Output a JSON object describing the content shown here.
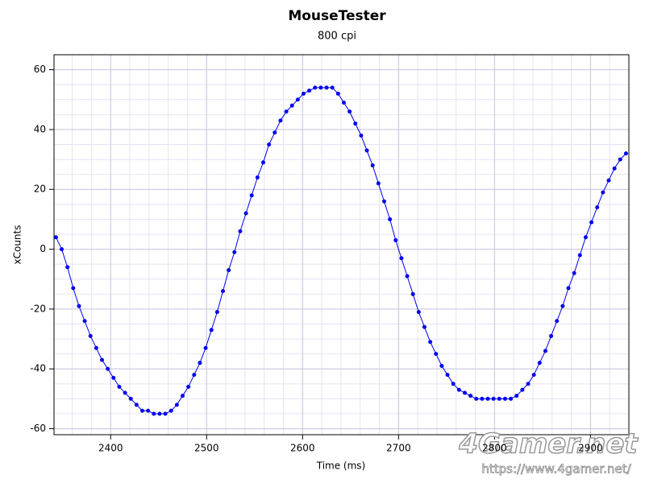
{
  "chart_data": {
    "type": "line",
    "title": "MouseTester",
    "subtitle": "800 cpi",
    "x_label": "Time (ms)",
    "y_label": "xCounts",
    "watermark": "4Gamer.net",
    "watermark_url": "https://www.4gamer.net/",
    "grid": true,
    "markers": true,
    "xlim": [
      2341,
      2940
    ],
    "ylim": [
      -62,
      65
    ],
    "xticks": [
      2400,
      2500,
      2600,
      2700,
      2800,
      2900
    ],
    "yticks": [
      -60,
      -40,
      -20,
      0,
      20,
      40,
      60
    ],
    "x": [
      2343,
      2349,
      2355,
      2361,
      2367,
      2373,
      2379,
      2385,
      2391,
      2397,
      2403,
      2409,
      2415,
      2421,
      2427,
      2433,
      2439,
      2445,
      2451,
      2457,
      2463,
      2469,
      2475,
      2481,
      2487,
      2493,
      2499,
      2505,
      2511,
      2517,
      2523,
      2529,
      2535,
      2541,
      2547,
      2553,
      2559,
      2565,
      2571,
      2577,
      2583,
      2589,
      2595,
      2601,
      2607,
      2613,
      2619,
      2625,
      2631,
      2637,
      2643,
      2649,
      2655,
      2661,
      2667,
      2673,
      2679,
      2685,
      2691,
      2697,
      2703,
      2709,
      2715,
      2721,
      2727,
      2733,
      2739,
      2745,
      2751,
      2757,
      2763,
      2769,
      2775,
      2781,
      2787,
      2793,
      2799,
      2805,
      2811,
      2817,
      2823,
      2829,
      2835,
      2841,
      2847,
      2853,
      2859,
      2865,
      2871,
      2877,
      2883,
      2889,
      2895,
      2901,
      2907,
      2913,
      2919,
      2925,
      2931,
      2937
    ],
    "series": [
      {
        "name": "xCounts",
        "color": "#0000ee",
        "values": [
          4,
          0,
          -6,
          -13,
          -19,
          -24,
          -29,
          -33,
          -37,
          -40,
          -43,
          -46,
          -48,
          -50,
          -52,
          -54,
          -54,
          -55,
          -55,
          -55,
          -54,
          -52,
          -49,
          -46,
          -42,
          -38,
          -33,
          -27,
          -21,
          -14,
          -7,
          -1,
          6,
          12,
          18,
          24,
          29,
          35,
          39,
          43,
          46,
          48,
          50,
          52,
          53,
          54,
          54,
          54,
          54,
          52,
          49,
          46,
          42,
          38,
          33,
          28,
          22,
          16,
          10,
          3,
          -3,
          -9,
          -15,
          -21,
          -26,
          -31,
          -35,
          -39,
          -42,
          -45,
          -47,
          -48,
          -49,
          -50,
          -50,
          -50,
          -50,
          -50,
          -50,
          -50,
          -49,
          -47,
          -45,
          -42,
          -38,
          -34,
          -29,
          -24,
          -19,
          -13,
          -8,
          -2,
          4,
          9,
          14,
          19,
          23,
          27,
          30,
          32
        ]
      }
    ]
  }
}
